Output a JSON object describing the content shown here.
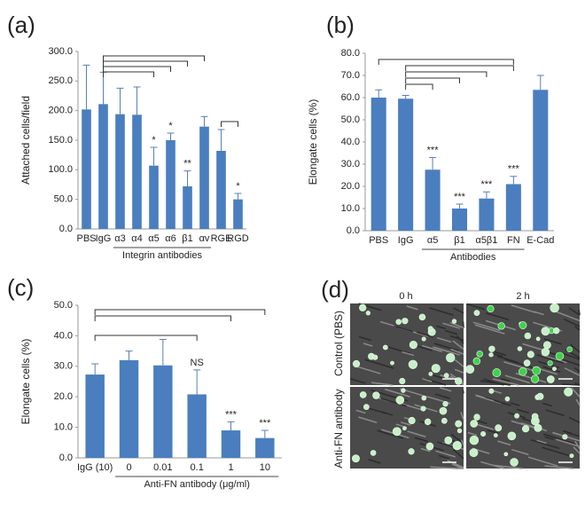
{
  "chart_data": [
    {
      "type": "bar",
      "panel_label": "(a)",
      "ylabel": "Attached cells/field",
      "group_label": "Integrin antibodies",
      "categories": [
        "PBS",
        "IgG",
        "α3",
        "α4",
        "α5",
        "α6",
        "β1",
        "αv",
        "RGE",
        "RGD"
      ],
      "values": [
        202,
        211,
        194,
        193,
        107,
        150,
        72,
        173,
        132,
        50
      ],
      "errors": [
        75,
        54,
        44,
        47,
        31,
        12,
        26,
        17,
        36,
        10
      ],
      "significance": [
        null,
        null,
        null,
        null,
        "*",
        "*",
        "**",
        null,
        null,
        "*"
      ],
      "color": "#4a7ebf",
      "ylim": [
        0,
        300
      ],
      "yticks": [
        {
          "value": 0,
          "label": "0.0"
        },
        {
          "value": 50,
          "label": "50.0"
        },
        {
          "value": 100,
          "label": "100.0"
        },
        {
          "value": 150,
          "label": "150.0"
        },
        {
          "value": 200,
          "label": "200.0"
        },
        {
          "value": 250,
          "label": "250.0"
        },
        {
          "value": 300,
          "label": "300.0"
        }
      ]
    },
    {
      "type": "bar",
      "panel_label": "(b)",
      "ylabel": "Elongate cells (%)",
      "group_label": "Antibodies",
      "categories": [
        "PBS",
        "IgG",
        "α5",
        "β1",
        "α5β1",
        "FN",
        "E-Cad"
      ],
      "values": [
        60,
        59.5,
        27.5,
        10,
        14.5,
        21,
        63.5
      ],
      "errors": [
        3.5,
        1.5,
        5.5,
        2,
        3,
        3.5,
        6.5
      ],
      "significance": [
        null,
        null,
        "***",
        "***",
        "***",
        "***",
        null
      ],
      "color": "#4a7ebf",
      "ylim": [
        0,
        80
      ],
      "yticks": [
        {
          "value": 0,
          "label": "0.0"
        },
        {
          "value": 10,
          "label": "10.0"
        },
        {
          "value": 20,
          "label": "20.0"
        },
        {
          "value": 30,
          "label": "30.0"
        },
        {
          "value": 40,
          "label": "40.0"
        },
        {
          "value": 50,
          "label": "50.0"
        },
        {
          "value": 60,
          "label": "60.0"
        },
        {
          "value": 70,
          "label": "70.0"
        },
        {
          "value": 80,
          "label": "80.0"
        }
      ]
    },
    {
      "type": "bar",
      "panel_label": "(c)",
      "ylabel": "Elongate cells (%)",
      "group_label": "Anti-FN antibody (μg/ml)",
      "categories": [
        "IgG (10)",
        "0",
        "0.01",
        "0.1",
        "1",
        "10"
      ],
      "values": [
        27.3,
        32,
        30.3,
        20.8,
        9,
        6.5
      ],
      "errors": [
        3.5,
        3,
        8.5,
        8,
        2.8,
        2.5
      ],
      "significance": [
        null,
        null,
        null,
        "NS",
        "***",
        "***"
      ],
      "color": "#4a7ebf",
      "ylim": [
        0,
        50
      ],
      "yticks": [
        {
          "value": 0,
          "label": "0.0"
        },
        {
          "value": 10,
          "label": "10.0"
        },
        {
          "value": 20,
          "label": "20.0"
        },
        {
          "value": 30,
          "label": "30.0"
        },
        {
          "value": 40,
          "label": "40.0"
        },
        {
          "value": 50,
          "label": "50.0"
        }
      ]
    }
  ],
  "image_panel": {
    "panel_label": "(d)",
    "columns": [
      "0 h",
      "2 h"
    ],
    "rows": [
      "Control (PBS)",
      "Anti-FN antibody"
    ]
  }
}
